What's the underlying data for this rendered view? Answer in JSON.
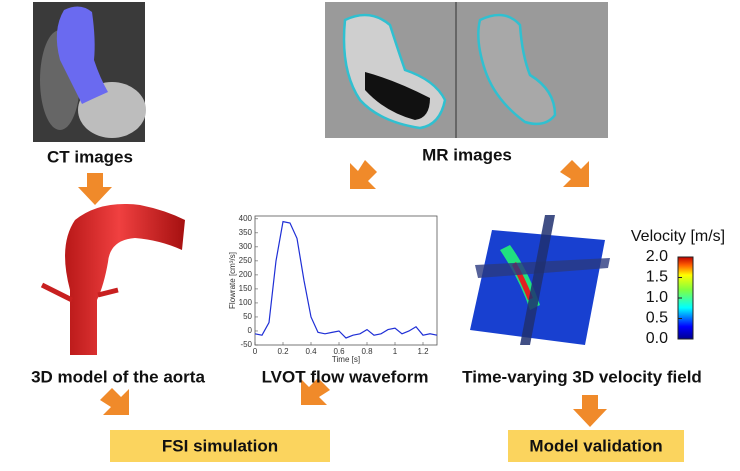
{
  "labels": {
    "ct": "CT images",
    "mr": "MR images",
    "aorta": "3D model of the aorta",
    "lvot": "LVOT flow waveform",
    "velocity_field": "Time-varying 3D velocity field"
  },
  "boxes": {
    "fsi": "FSI simulation",
    "validation": "Model validation"
  },
  "waveform": {
    "type": "line",
    "xlabel": "Time [s]",
    "ylabel": "Flowrate [cm³/s]",
    "x": [
      0,
      0.05,
      0.1,
      0.15,
      0.2,
      0.25,
      0.3,
      0.35,
      0.4,
      0.45,
      0.5,
      0.55,
      0.6,
      0.65,
      0.7,
      0.75,
      0.8,
      0.85,
      0.9,
      0.95,
      1.0,
      1.05,
      1.1,
      1.15,
      1.2,
      1.25,
      1.3
    ],
    "series": [
      {
        "color": "#1f2fd6",
        "values": [
          -10,
          -15,
          30,
          250,
          390,
          385,
          330,
          180,
          50,
          -5,
          -10,
          -5,
          0,
          -25,
          -15,
          -10,
          5,
          -15,
          -10,
          5,
          10,
          -10,
          0,
          15,
          -15,
          -10,
          -15
        ]
      }
    ],
    "xlim": [
      0,
      1.3
    ],
    "ylim": [
      -50,
      410
    ],
    "xticks": [
      0,
      0.2,
      0.4,
      0.6,
      0.8,
      1,
      1.2
    ],
    "yticks": [
      -50,
      0,
      50,
      100,
      150,
      200,
      250,
      300,
      350,
      400
    ]
  },
  "colorbar": {
    "title": "Velocity [m/s]",
    "ylim": [
      0,
      2
    ],
    "yticks": [
      {
        "value": 2,
        "label": "2.0"
      },
      {
        "value": 1.5,
        "label": "1.5"
      },
      {
        "value": 1,
        "label": "1.0"
      },
      {
        "value": 0.5,
        "label": "0.5"
      },
      {
        "value": 0,
        "label": "0.0"
      }
    ]
  }
}
